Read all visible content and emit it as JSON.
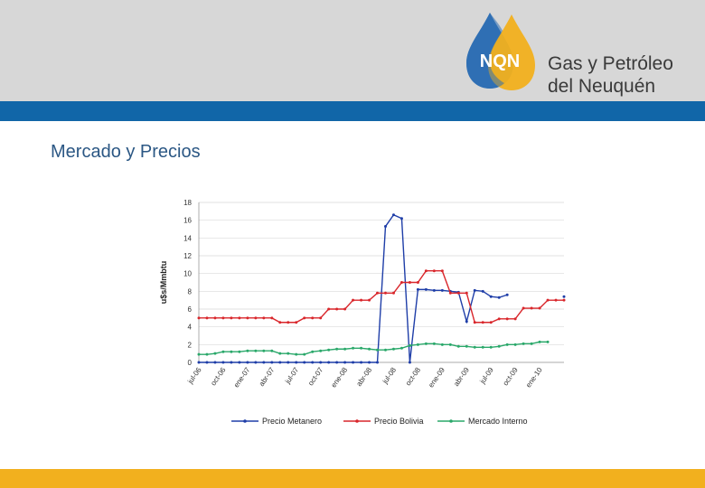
{
  "header": {
    "logo_text": "NQN",
    "brand_line1": "Gas y Petróleo",
    "brand_line2": "del Neuquén"
  },
  "page_title": "Mercado y Precios",
  "colors": {
    "header_gray": "#d7d7d7",
    "blue_bar": "#1166a8",
    "footer_yellow": "#f2b01e",
    "title": "#2b5784"
  },
  "chart_data": {
    "type": "line",
    "title": "",
    "xlabel": "",
    "ylabel": "u$s/Mmbtu",
    "ylim": [
      0,
      18
    ],
    "yticks": [
      0,
      2,
      4,
      6,
      8,
      10,
      12,
      14,
      16,
      18
    ],
    "grid": "horizontal",
    "legend_position": "bottom",
    "x_tick_labels": [
      "jul-06",
      "oct-06",
      "ene-07",
      "abr-07",
      "jul-07",
      "oct-07",
      "ene-08",
      "abr-08",
      "jul-08",
      "oct-08",
      "ene-09",
      "abr-09",
      "jul-09",
      "oct-09",
      "ene-10"
    ],
    "x_tick_index": [
      0,
      3,
      6,
      9,
      12,
      15,
      18,
      21,
      24,
      27,
      30,
      33,
      36,
      39,
      42
    ],
    "n_points": 46,
    "series": [
      {
        "name": "Precio Metanero",
        "color": "#1f3ea8",
        "values": [
          0,
          0,
          0,
          0,
          0,
          0,
          0,
          0,
          0,
          0,
          0,
          0,
          0,
          0,
          0,
          0,
          0,
          0,
          0,
          0,
          0,
          0,
          0,
          15.3,
          16.6,
          16.2,
          0,
          8.2,
          8.2,
          8.1,
          8.1,
          8.0,
          7.9,
          4.6,
          8.1,
          8.0,
          7.4,
          7.3,
          7.6,
          null,
          null,
          null,
          null,
          null,
          null,
          7.4
        ]
      },
      {
        "name": "Precio Bolivia",
        "color": "#d9262b",
        "values": [
          5.0,
          5.0,
          5.0,
          5.0,
          5.0,
          5.0,
          5.0,
          5.0,
          5.0,
          5.0,
          4.5,
          4.5,
          4.5,
          5.0,
          5.0,
          5.0,
          6.0,
          6.0,
          6.0,
          7.0,
          7.0,
          7.0,
          7.8,
          7.8,
          7.8,
          9.0,
          9.0,
          9.0,
          10.3,
          10.3,
          10.3,
          7.8,
          7.8,
          7.8,
          4.5,
          4.5,
          4.5,
          4.9,
          4.9,
          4.9,
          6.1,
          6.1,
          6.1,
          7.0,
          7.0,
          7.0
        ]
      },
      {
        "name": "Mercado Interno",
        "color": "#2aa86a",
        "values": [
          0.9,
          0.9,
          1.0,
          1.2,
          1.2,
          1.2,
          1.3,
          1.3,
          1.3,
          1.3,
          1.0,
          1.0,
          0.9,
          0.9,
          1.2,
          1.3,
          1.4,
          1.5,
          1.5,
          1.6,
          1.6,
          1.5,
          1.4,
          1.4,
          1.5,
          1.6,
          1.9,
          2.0,
          2.1,
          2.1,
          2.0,
          2.0,
          1.8,
          1.8,
          1.7,
          1.7,
          1.7,
          1.8,
          2.0,
          2.0,
          2.1,
          2.1,
          2.3,
          2.3,
          null,
          null
        ]
      }
    ]
  }
}
